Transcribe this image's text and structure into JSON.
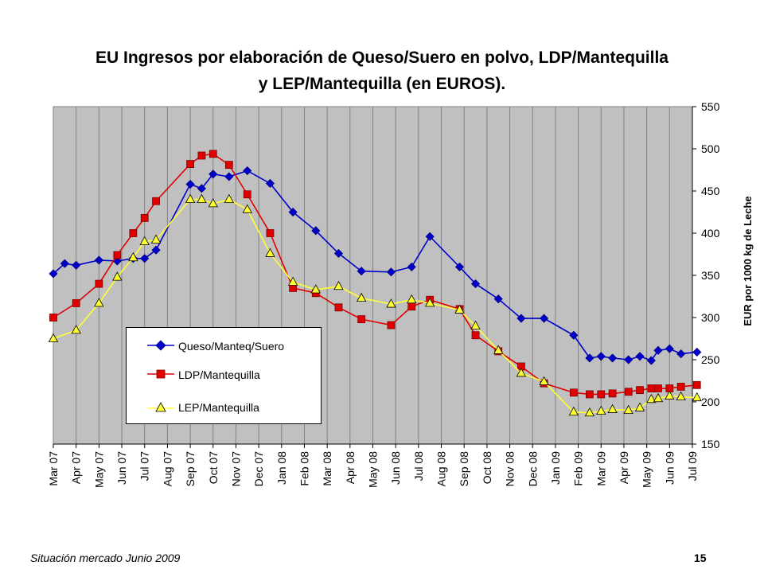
{
  "title_line1": "EU Ingresos por elaboración de Queso/Suero en polvo, LDP/Mantequilla",
  "title_line2": "y LEP/Mantequilla (en EUROS).",
  "footer": {
    "source": "Situación mercado Junio 2009",
    "page": "15"
  },
  "colors": {
    "plot_bg": "#c0c0c0",
    "grid": "#808080",
    "queso": "#0000cc",
    "ldp": "#e00000",
    "lep": "#ffff33"
  },
  "chart_data": {
    "type": "line",
    "title": "EU Ingresos por elaboración de Queso/Suero en polvo, LDP/Mantequilla y LEP/Mantequilla (en EUROS).",
    "xlabel": "",
    "ylabel": "EUR por 1000 kg de Leche",
    "ylim": [
      150,
      550
    ],
    "yticks": [
      150,
      200,
      250,
      300,
      350,
      400,
      450,
      500,
      550
    ],
    "y_axis_side": "right",
    "grid": "vertical",
    "legend_position": "lower-left inside plot",
    "categories": [
      "Mar 07",
      "Apr 07",
      "May 07",
      "Jun 07",
      "Jul 07",
      "Aug 07",
      "Sep 07",
      "Oct 07",
      "Nov 07",
      "Dec 07",
      "Jan 08",
      "Feb 08",
      "Mar 08",
      "Apr 08",
      "May 08",
      "Jun 08",
      "Jul 08",
      "Aug 08",
      "Sep 08",
      "Oct 08",
      "Nov 08",
      "Dec 08",
      "Jan 09",
      "Feb 09",
      "Mar 09",
      "Apr 09",
      "May 09",
      "Jun 09",
      "Jul 09"
    ],
    "series": [
      {
        "name": "Queso/Manteq/Suero",
        "marker": "diamond",
        "color": "#0000cc",
        "points": [
          [
            0,
            352
          ],
          [
            0.5,
            364
          ],
          [
            1,
            362
          ],
          [
            2,
            368
          ],
          [
            2.8,
            367
          ],
          [
            3.5,
            370
          ],
          [
            4,
            370
          ],
          [
            4.5,
            380
          ],
          [
            6,
            458
          ],
          [
            6.5,
            453
          ],
          [
            7,
            470
          ],
          [
            7.7,
            467
          ],
          [
            8.5,
            474
          ],
          [
            9.5,
            459
          ],
          [
            10.5,
            425
          ],
          [
            11.5,
            403
          ],
          [
            12.5,
            376
          ],
          [
            13.5,
            355
          ],
          [
            14.8,
            354
          ],
          [
            15.7,
            360
          ],
          [
            16.5,
            396
          ],
          [
            17.8,
            360
          ],
          [
            18.5,
            340
          ],
          [
            19.5,
            322
          ],
          [
            20.5,
            299
          ],
          [
            21.5,
            299
          ],
          [
            22.8,
            279
          ],
          [
            23.5,
            252
          ],
          [
            24,
            254
          ],
          [
            24.5,
            252
          ],
          [
            25.2,
            250
          ],
          [
            25.7,
            254
          ],
          [
            26.2,
            249
          ],
          [
            26.5,
            261
          ],
          [
            27,
            263
          ],
          [
            27.5,
            257
          ],
          [
            28.2,
            259
          ]
        ]
      },
      {
        "name": "LDP/Mantequilla",
        "marker": "square",
        "color": "#e00000",
        "points": [
          [
            0,
            300
          ],
          [
            1,
            317
          ],
          [
            2,
            340
          ],
          [
            2.8,
            374
          ],
          [
            3.5,
            400
          ],
          [
            4,
            418
          ],
          [
            4.5,
            438
          ],
          [
            6,
            482
          ],
          [
            6.5,
            492
          ],
          [
            7,
            494
          ],
          [
            7.7,
            481
          ],
          [
            8.5,
            446
          ],
          [
            9.5,
            400
          ],
          [
            10.5,
            335
          ],
          [
            11.5,
            329
          ],
          [
            12.5,
            312
          ],
          [
            13.5,
            298
          ],
          [
            14.8,
            291
          ],
          [
            15.7,
            313
          ],
          [
            16.5,
            321
          ],
          [
            17.8,
            310
          ],
          [
            18.5,
            279
          ],
          [
            19.5,
            260
          ],
          [
            20.5,
            242
          ],
          [
            21.5,
            222
          ],
          [
            22.8,
            211
          ],
          [
            23.5,
            209
          ],
          [
            24,
            209
          ],
          [
            24.5,
            210
          ],
          [
            25.2,
            212
          ],
          [
            25.7,
            214
          ],
          [
            26.2,
            216
          ],
          [
            26.5,
            216
          ],
          [
            27,
            216
          ],
          [
            27.5,
            218
          ],
          [
            28.2,
            220
          ]
        ]
      },
      {
        "name": "LEP/Mantequilla",
        "marker": "triangle",
        "color": "#ffff33",
        "points": [
          [
            0,
            275
          ],
          [
            1,
            285
          ],
          [
            2,
            317
          ],
          [
            2.8,
            348
          ],
          [
            3.5,
            371
          ],
          [
            4,
            390
          ],
          [
            4.5,
            392
          ],
          [
            6,
            440
          ],
          [
            6.5,
            440
          ],
          [
            7,
            435
          ],
          [
            7.7,
            440
          ],
          [
            8.5,
            428
          ],
          [
            9.5,
            376
          ],
          [
            10.5,
            342
          ],
          [
            11.5,
            333
          ],
          [
            12.5,
            337
          ],
          [
            13.5,
            323
          ],
          [
            14.8,
            316
          ],
          [
            15.7,
            321
          ],
          [
            16.5,
            317
          ],
          [
            17.8,
            309
          ],
          [
            18.5,
            290
          ],
          [
            19.5,
            261
          ],
          [
            20.5,
            234
          ],
          [
            21.5,
            224
          ],
          [
            22.8,
            188
          ],
          [
            23.5,
            187
          ],
          [
            24,
            189
          ],
          [
            24.5,
            191
          ],
          [
            25.2,
            190
          ],
          [
            25.7,
            193
          ],
          [
            26.2,
            203
          ],
          [
            26.5,
            204
          ],
          [
            27,
            207
          ],
          [
            27.5,
            206
          ],
          [
            28.2,
            205
          ]
        ]
      }
    ]
  }
}
